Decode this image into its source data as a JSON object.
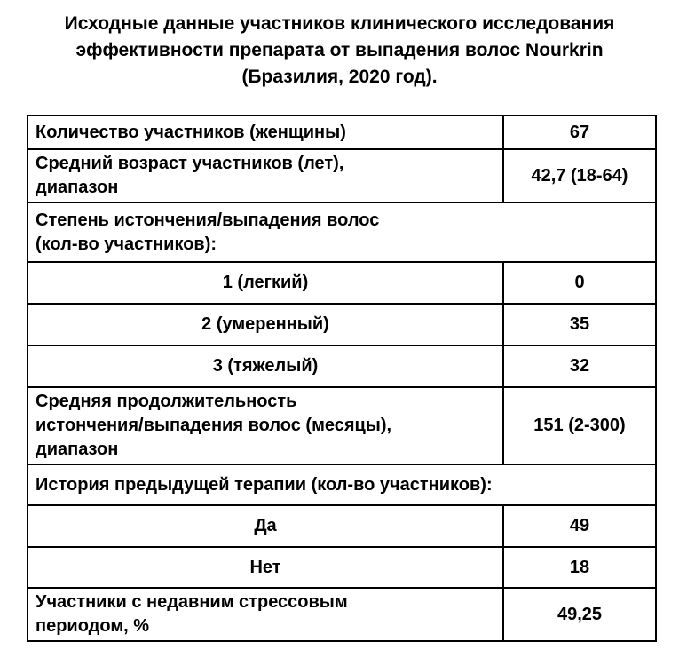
{
  "title": "Исходные данные участников клинического исследования\nэффективности препарата от выпадения волос Nourkrin\n(Бразилия, 2020 год).",
  "colors": {
    "text": "#000000",
    "background": "#ffffff",
    "border": "#000000"
  },
  "table": {
    "rows": [
      {
        "label": "Количество участников (женщины)",
        "value": "67"
      },
      {
        "label": "Средний возраст участников (лет),\nдиапазон",
        "value": "42,7 (18-64)"
      },
      {
        "label": "Степень истончения/выпадения волос\n(кол-во участников):"
      },
      {
        "label": "1 (легкий)",
        "value": "0"
      },
      {
        "label": "2 (умеренный)",
        "value": "35"
      },
      {
        "label": "3 (тяжелый)",
        "value": "32"
      },
      {
        "label": "Средняя продолжительность\nистончения/выпадения волос (месяцы),\nдиапазон",
        "value": "151 (2-300)"
      },
      {
        "label": "История предыдущей терапии (кол-во участников):"
      },
      {
        "label": "Да",
        "value": "49"
      },
      {
        "label": "Нет",
        "value": "18"
      },
      {
        "label": "Участники с недавним стрессовым\nпериодом, %",
        "value": "49,25"
      }
    ]
  }
}
